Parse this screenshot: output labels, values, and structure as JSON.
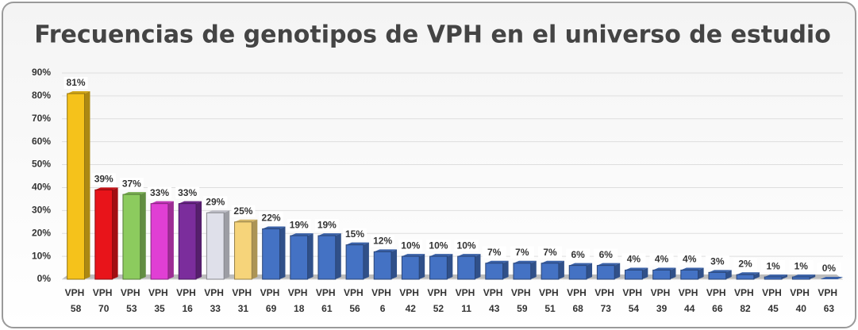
{
  "chart_data": {
    "type": "bar",
    "title": "Frecuencias de genotipos de VPH en el universo de estudio",
    "categories": [
      "VPH 58",
      "VPH 70",
      "VPH 53",
      "VPH 35",
      "VPH 16",
      "VPH 33",
      "VPH 31",
      "VPH 69",
      "VPH 18",
      "VPH 61",
      "VPH 56",
      "VPH 6",
      "VPH 42",
      "VPH 52",
      "VPH 11",
      "VPH 43",
      "VPH 59",
      "VPH 51",
      "VPH 68",
      "VPH 73",
      "VPH 54",
      "VPH 39",
      "VPH 44",
      "VPH 66",
      "VPH 82",
      "VPH 45",
      "VPH 40",
      "VPH 63"
    ],
    "values": [
      81,
      39,
      37,
      33,
      33,
      29,
      25,
      22,
      19,
      19,
      15,
      12,
      10,
      10,
      10,
      7,
      7,
      7,
      6,
      6,
      4,
      4,
      4,
      3,
      2,
      1,
      1,
      0
    ],
    "value_labels": [
      "81%",
      "39%",
      "37%",
      "33%",
      "33%",
      "29%",
      "25%",
      "22%",
      "19%",
      "19%",
      "15%",
      "12%",
      "10%",
      "10%",
      "10%",
      "7%",
      "7%",
      "7%",
      "6%",
      "6%",
      "4%",
      "4%",
      "4%",
      "3%",
      "2%",
      "1%",
      "1%",
      "0%"
    ],
    "colors": [
      "#f5c21b",
      "#e8141a",
      "#8ccb5e",
      "#e03fd4",
      "#7b2d9c",
      "#dfe0ea",
      "#f6d47a",
      "#4472c4",
      "#4472c4",
      "#4472c4",
      "#4472c4",
      "#4472c4",
      "#4472c4",
      "#4472c4",
      "#4472c4",
      "#4472c4",
      "#4472c4",
      "#4472c4",
      "#4472c4",
      "#4472c4",
      "#4472c4",
      "#4472c4",
      "#4472c4",
      "#4472c4",
      "#4472c4",
      "#4472c4",
      "#4472c4",
      "#4472c4"
    ],
    "ylim": [
      0,
      90
    ],
    "yticks": [
      {
        "value": 0,
        "label": "0%"
      },
      {
        "value": 10,
        "label": "10%"
      },
      {
        "value": 20,
        "label": "20%"
      },
      {
        "value": 30,
        "label": "30%"
      },
      {
        "value": 40,
        "label": "40%"
      },
      {
        "value": 50,
        "label": "50%"
      },
      {
        "value": 60,
        "label": "60%"
      },
      {
        "value": 70,
        "label": "70%"
      },
      {
        "value": 80,
        "label": "80%"
      },
      {
        "value": 90,
        "label": "90%"
      }
    ],
    "grid": true
  }
}
